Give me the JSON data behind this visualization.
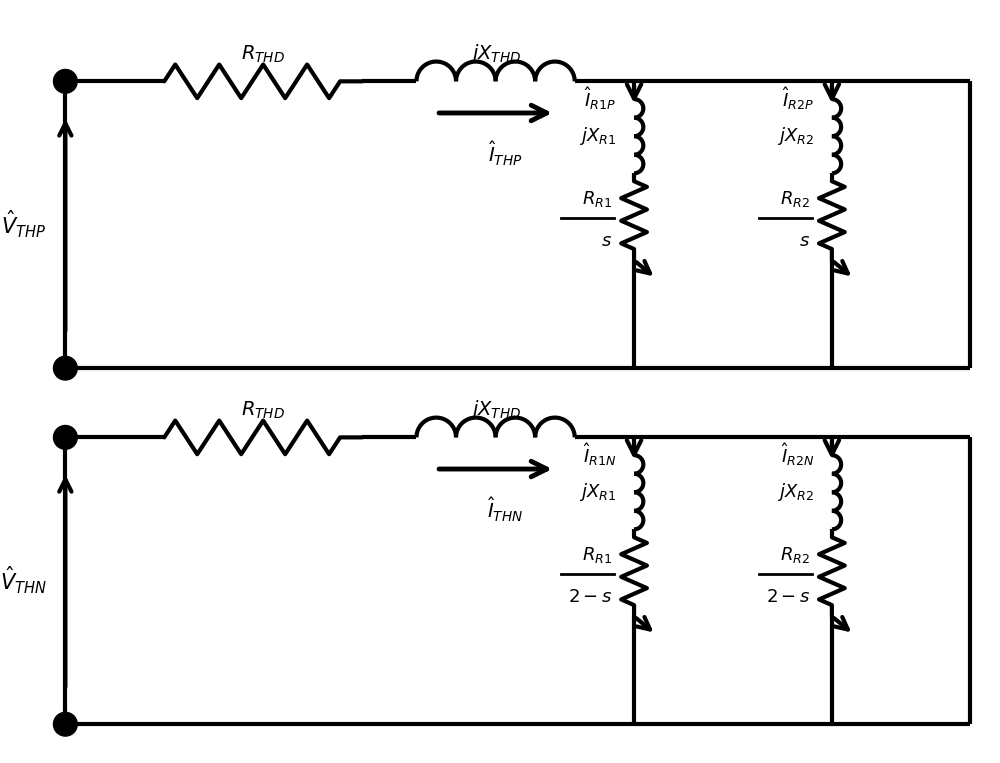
{
  "fig_width": 10.0,
  "fig_height": 7.63,
  "dpi": 100,
  "bg_color": "white",
  "line_color": "black",
  "line_width": 3.0,
  "circuit1": {
    "label_V": "$\\hat{V}_{THP}$",
    "label_I_main": "$\\hat{I}_{THP}$",
    "label_R_series": "$R_{THD}$",
    "label_X_series": "$jX_{THD}$",
    "label_I_R1": "$\\hat{I}_{R1P}$",
    "label_I_R2": "$\\hat{I}_{R2P}$",
    "label_jX_R1": "$jX_{R1}$",
    "label_jX_R2": "$jX_{R2}$",
    "label_R_R1": "$R_{R1}$",
    "label_denom1": "$s$",
    "label_R_R2": "$R_{R2}$",
    "label_denom2": "$s$"
  },
  "circuit2": {
    "label_V": "$\\hat{V}_{THN}$",
    "label_I_main": "$\\hat{I}_{THN}$",
    "label_R_series": "$R_{THD}$",
    "label_X_series": "$jX_{THD}$",
    "label_I_R1": "$\\hat{I}_{R1N}$",
    "label_I_R2": "$\\hat{I}_{R2N}$",
    "label_jX_R1": "$jX_{R1}$",
    "label_jX_R2": "$jX_{R2}$",
    "label_R_R1": "$R_{R1}$",
    "label_denom1": "$2-s$",
    "label_R_R2": "$R_{R2}$",
    "label_denom2": "$2-s$"
  }
}
